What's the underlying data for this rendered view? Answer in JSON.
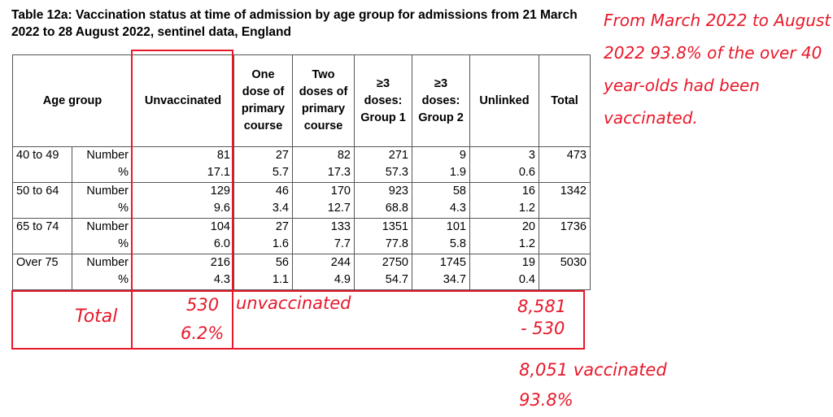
{
  "title": "Table 12a: Vaccination status at time of admission by age group for admissions from 21 March 2022 to 28 August 2022, sentinel data, England",
  "headers": {
    "age_group": "Age group",
    "unvaccinated": "Unvaccinated",
    "one_dose": "One dose of primary course",
    "two_doses": "Two doses of primary course",
    "g1": "≥3 doses: Group 1",
    "g2": "≥3 doses: Group 2",
    "unlinked": "Unlinked",
    "total": "Total"
  },
  "rows": [
    {
      "age": "40 to 49",
      "number_label": "Number",
      "pct_label": "%",
      "numbers": [
        "81",
        "27",
        "82",
        "271",
        "9",
        "3"
      ],
      "pcts": [
        "17.1",
        "5.7",
        "17.3",
        "57.3",
        "1.9",
        "0.6"
      ],
      "total": "473"
    },
    {
      "age": "50 to 64",
      "number_label": "Number",
      "pct_label": "%",
      "numbers": [
        "129",
        "46",
        "170",
        "923",
        "58",
        "16"
      ],
      "pcts": [
        "9.6",
        "3.4",
        "12.7",
        "68.8",
        "4.3",
        "1.2"
      ],
      "total": "1342"
    },
    {
      "age": "65 to 74",
      "number_label": "Number",
      "pct_label": "%",
      "numbers": [
        "104",
        "27",
        "133",
        "1351",
        "101",
        "20"
      ],
      "pcts": [
        "6.0",
        "1.6",
        "7.7",
        "77.8",
        "5.8",
        "1.2"
      ],
      "total": "1736"
    },
    {
      "age": "Over 75",
      "number_label": "Number",
      "pct_label": "%",
      "numbers": [
        "216",
        "56",
        "244",
        "2750",
        "1745",
        "19"
      ],
      "pcts": [
        "4.3",
        "1.1",
        "4.9",
        "54.7",
        "34.7",
        "0.4"
      ],
      "total": "5030"
    }
  ],
  "annotations": {
    "total_label": "Total",
    "unvacc_count": "530",
    "unvacc_pct": "6.2%",
    "unvacc_word": "unvaccinated",
    "sum_total": "8,581",
    "minus": "- 530",
    "vaccinated": "8,051 vaccinated",
    "vacc_pct": "93.8%",
    "note": "From March 2022 to August 2022 93.8% of the over 40 year-olds had been vaccinated."
  },
  "colors": {
    "annotation": "#e8182a"
  }
}
